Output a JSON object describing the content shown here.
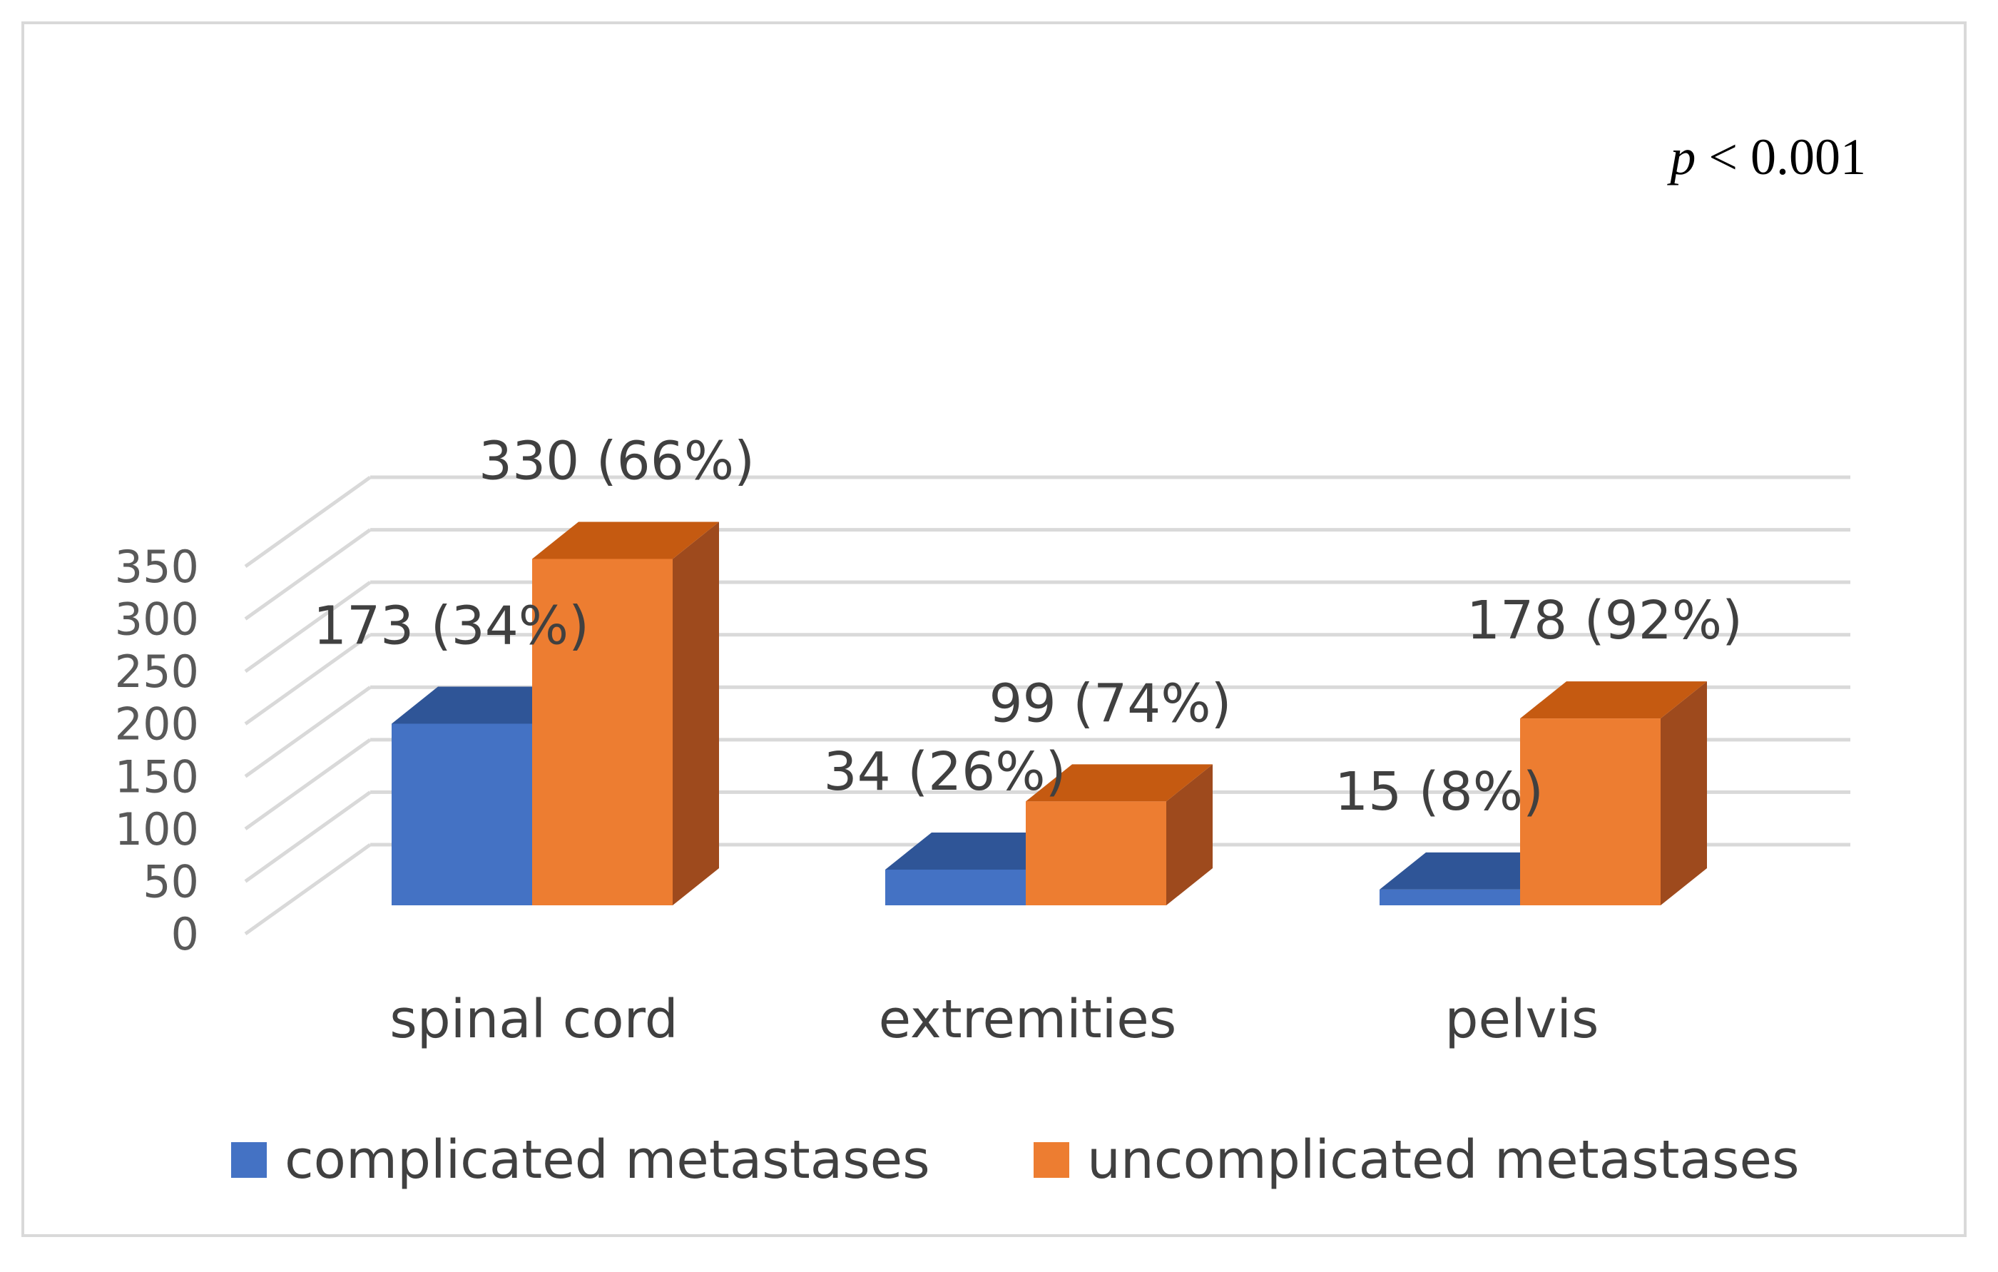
{
  "chart_data": {
    "type": "bar",
    "style": "3d-clustered-column",
    "categories": [
      "spinal cord",
      "extremities",
      "pelvis"
    ],
    "series": [
      {
        "name": "complicated metastases",
        "values": [
          173,
          34,
          15
        ],
        "labels": [
          "173 (34%)",
          "34 (26%)",
          "15 (8%)"
        ],
        "color": "#4472c4",
        "top_color": "#2f5597",
        "side_color": "#2f5597"
      },
      {
        "name": "uncomplicated metastases",
        "values": [
          330,
          99,
          178
        ],
        "labels": [
          "330 (66%)",
          "99 (74%)",
          "178 (92%)"
        ],
        "color": "#ed7d31",
        "top_color": "#c55a11",
        "side_color": "#9e4a1d"
      }
    ],
    "yticks": [
      "0",
      "50",
      "100",
      "150",
      "200",
      "250",
      "300",
      "350"
    ],
    "ylim": [
      0,
      350
    ],
    "annotation": {
      "italic": "p",
      "rest": " < 0.001"
    },
    "grid": true,
    "legend_position": "bottom"
  }
}
